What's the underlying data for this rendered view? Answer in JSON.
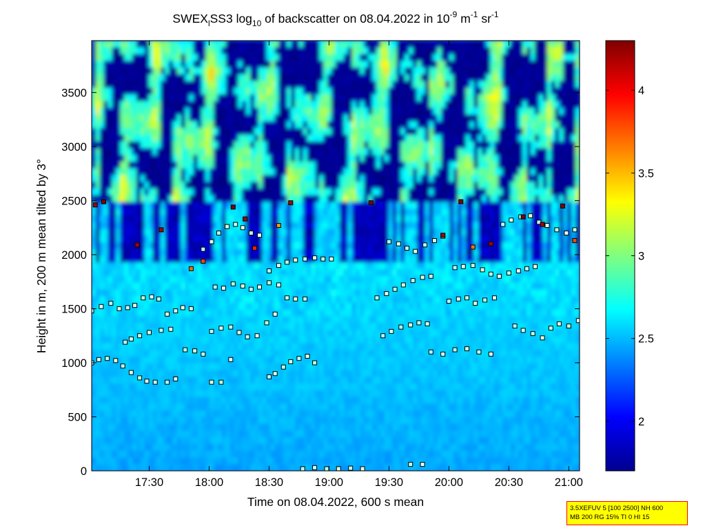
{
  "chart_data": {
    "type": "heatmap",
    "title_parts": {
      "prefix": "SWEX",
      "sub1": "l",
      "mid": "SS3 log",
      "sub2": "10",
      "rest": " of backscatter on 08.04.2022 in 10",
      "sup1": "-9",
      "unit1": " m",
      "sup2": "-1",
      "unit2": " sr",
      "sup3": "-1"
    },
    "xlabel": "Time on 08.04.2022, 600 s mean",
    "ylabel": "Height in m, 200 m mean tilted by 3°",
    "x_tick_labels": [
      "17:30",
      "18:00",
      "18:30",
      "19:00",
      "19:30",
      "20:00",
      "20:30",
      "21:00"
    ],
    "x_ticks_hours": [
      17.5,
      18.0,
      18.5,
      19.0,
      19.5,
      20.0,
      20.5,
      21.0
    ],
    "xlim_hours": [
      17.02,
      21.09
    ],
    "y_ticks": [
      0,
      500,
      1000,
      1500,
      2000,
      2500,
      3000,
      3500
    ],
    "ylim": [
      0,
      3980
    ],
    "colorbar": {
      "range": [
        1.7,
        4.3
      ],
      "ticks": [
        2,
        2.5,
        3,
        3.5,
        4
      ],
      "tick_labels": [
        "2",
        "2.5",
        "3",
        "3.5",
        "4"
      ],
      "colormap": "jet"
    },
    "marker_layers": [
      {
        "name": "layer-1",
        "x_hours": [
          17.02,
          17.08,
          17.15,
          17.22,
          17.28,
          17.35,
          17.42,
          17.48,
          17.55
        ],
        "y": [
          1000,
          1030,
          1040,
          1020,
          970,
          910,
          860,
          830,
          820
        ]
      },
      {
        "name": "layer-2",
        "x_hours": [
          17.65,
          17.72,
          17.8,
          17.88,
          17.95,
          18.02,
          18.1,
          18.18
        ],
        "y": [
          820,
          850,
          1120,
          1110,
          1080,
          820,
          820,
          1030
        ]
      },
      {
        "name": "layer-3",
        "x_hours": [
          18.5,
          18.55,
          18.62,
          18.68,
          18.75,
          18.82,
          18.88
        ],
        "y": [
          870,
          900,
          960,
          1010,
          1040,
          1060,
          1000
        ]
      },
      {
        "name": "layer-4",
        "x_hours": [
          17.3,
          17.35,
          17.42,
          17.5,
          17.6,
          17.68
        ],
        "y": [
          1190,
          1220,
          1250,
          1280,
          1300,
          1310
        ]
      },
      {
        "name": "layer-5",
        "x_hours": [
          18.02,
          18.1,
          18.18,
          18.25,
          18.32,
          18.4,
          18.48,
          18.55
        ],
        "y": [
          1290,
          1320,
          1330,
          1280,
          1240,
          1250,
          1370,
          1450
        ]
      },
      {
        "name": "layer-6",
        "x_hours": [
          17.02,
          17.1,
          17.18,
          17.25,
          17.32,
          17.38,
          17.45,
          17.52,
          17.58,
          17.65,
          17.72,
          17.78,
          17.85
        ],
        "y": [
          1480,
          1520,
          1550,
          1500,
          1510,
          1530,
          1600,
          1610,
          1590,
          1450,
          1480,
          1510,
          1500
        ]
      },
      {
        "name": "layer-7",
        "x_hours": [
          18.05,
          18.12,
          18.2,
          18.28,
          18.35,
          18.42,
          18.5,
          18.58,
          18.65,
          18.72,
          18.8
        ],
        "y": [
          1700,
          1690,
          1730,
          1710,
          1680,
          1700,
          1740,
          1720,
          1600,
          1590,
          1590
        ]
      },
      {
        "name": "layer-8",
        "x_hours": [
          18.5,
          18.58,
          18.65,
          18.72,
          18.8,
          18.88,
          18.95,
          19.02
        ],
        "y": [
          1850,
          1900,
          1930,
          1950,
          1960,
          1970,
          1960,
          1960
        ]
      },
      {
        "name": "layer-9",
        "x_hours": [
          17.95,
          18.02,
          18.08,
          18.15,
          18.22,
          18.28,
          18.35,
          18.42
        ],
        "y": [
          2050,
          2120,
          2200,
          2260,
          2280,
          2250,
          2200,
          2180
        ]
      },
      {
        "name": "layer-10",
        "x_hours": [
          19.4,
          19.48,
          19.55,
          19.62,
          19.7,
          19.78,
          19.85
        ],
        "y": [
          1600,
          1640,
          1680,
          1720,
          1760,
          1790,
          1800
        ]
      },
      {
        "name": "layer-11",
        "x_hours": [
          19.5,
          19.58,
          19.65,
          19.72,
          19.8,
          19.88,
          19.95
        ],
        "y": [
          2120,
          2100,
          2060,
          2030,
          2090,
          2130,
          2170
        ]
      },
      {
        "name": "layer-12",
        "x_hours": [
          19.45,
          19.52,
          19.6,
          19.68,
          19.75,
          19.82
        ],
        "y": [
          1250,
          1290,
          1330,
          1350,
          1370,
          1360
        ]
      },
      {
        "name": "layer-13",
        "x_hours": [
          20.0,
          20.08,
          20.15,
          20.22,
          20.3,
          20.38
        ],
        "y": [
          1570,
          1590,
          1600,
          1550,
          1580,
          1600
        ]
      },
      {
        "name": "layer-14",
        "x_hours": [
          20.05,
          20.12,
          20.2,
          20.28,
          20.35,
          20.42,
          20.5,
          20.58,
          20.65,
          20.72
        ],
        "y": [
          1880,
          1890,
          1900,
          1860,
          1820,
          1800,
          1830,
          1850,
          1870,
          1890
        ]
      },
      {
        "name": "layer-15",
        "x_hours": [
          20.45,
          20.52,
          20.6,
          20.68,
          20.75,
          20.82,
          20.9,
          20.98,
          21.05
        ],
        "y": [
          2280,
          2320,
          2350,
          2360,
          2300,
          2270,
          2230,
          2200,
          2230
        ]
      },
      {
        "name": "layer-16",
        "x_hours": [
          20.55,
          20.62,
          20.7,
          20.78,
          20.85,
          20.92,
          21.0,
          21.08
        ],
        "y": [
          1340,
          1300,
          1270,
          1230,
          1320,
          1360,
          1340,
          1390
        ]
      },
      {
        "name": "layer-17",
        "x_hours": [
          19.85,
          19.95,
          20.05,
          20.15,
          20.25,
          20.35
        ],
        "y": [
          1100,
          1080,
          1120,
          1130,
          1100,
          1080
        ]
      },
      {
        "name": "layer-18",
        "x_hours": [
          18.78,
          18.88,
          18.98,
          19.08,
          19.18,
          19.28,
          19.68,
          19.78
        ],
        "y": [
          20,
          30,
          20,
          20,
          25,
          20,
          60,
          60
        ]
      }
    ],
    "colored_markers": [
      {
        "x_hours": 17.05,
        "y": 2460,
        "level": 4.2
      },
      {
        "x_hours": 17.12,
        "y": 2490,
        "level": 4.3
      },
      {
        "x_hours": 17.4,
        "y": 2090,
        "level": 4.2
      },
      {
        "x_hours": 17.6,
        "y": 2230,
        "level": 4.2
      },
      {
        "x_hours": 17.85,
        "y": 1870,
        "level": 3.7
      },
      {
        "x_hours": 17.95,
        "y": 1940,
        "level": 3.8
      },
      {
        "x_hours": 18.2,
        "y": 2440,
        "level": 4.3
      },
      {
        "x_hours": 18.3,
        "y": 2330,
        "level": 4.2
      },
      {
        "x_hours": 18.38,
        "y": 2060,
        "level": 3.9
      },
      {
        "x_hours": 18.58,
        "y": 2270,
        "level": 3.6
      },
      {
        "x_hours": 18.68,
        "y": 2480,
        "level": 4.2
      },
      {
        "x_hours": 19.35,
        "y": 2480,
        "level": 4.3
      },
      {
        "x_hours": 19.95,
        "y": 2180,
        "level": 4.2
      },
      {
        "x_hours": 20.1,
        "y": 2490,
        "level": 4.3
      },
      {
        "x_hours": 20.2,
        "y": 2070,
        "level": 3.7
      },
      {
        "x_hours": 20.35,
        "y": 2100,
        "level": 4.2
      },
      {
        "x_hours": 20.62,
        "y": 2350,
        "level": 4.3
      },
      {
        "x_hours": 20.78,
        "y": 2280,
        "level": 4.2
      },
      {
        "x_hours": 20.95,
        "y": 2450,
        "level": 4.3
      },
      {
        "x_hours": 21.05,
        "y": 2130,
        "level": 3.8
      }
    ]
  },
  "info_box": {
    "line1": "3.5XEFUV 5 [100 2500] NH 600",
    "line2": "MB 200 RG 15% TI 0 HI 15"
  }
}
